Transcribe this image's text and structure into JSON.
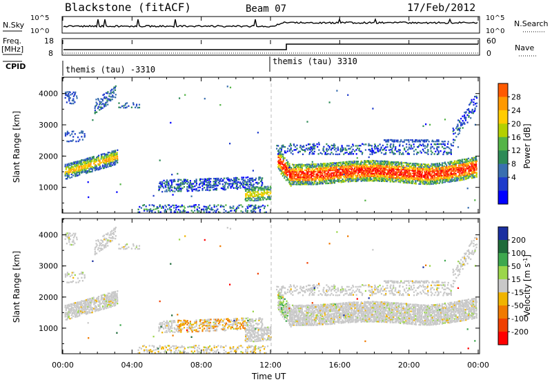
{
  "header": {
    "title": "Blackstone (fitACF)",
    "beam": "Beam 07",
    "date": "17/Feb/2012"
  },
  "aux": {
    "nsky_label": "N.Sky",
    "nsky_ticks": [
      "10^5",
      "10^0"
    ],
    "nsearch_label": "N.Search",
    "freq_label": "Freq.",
    "freq_unit": "[MHz]",
    "freq_ticks": [
      "18",
      "8"
    ],
    "nave_label": "Nave",
    "nave_ticks": [
      "60",
      "0"
    ],
    "cpid_label": "CPID",
    "cpid_left": "themis (tau) -3310",
    "cpid_right": "themis (tau) 3310"
  },
  "chart_data": [
    {
      "type": "heatmap",
      "name": "power",
      "ylabel": "Slant Range [km]",
      "colorbar_label": "Power [dB]",
      "colorbar_ticks": [
        "28",
        "24",
        "20",
        "16",
        "12",
        "8",
        "4"
      ],
      "colorbar_colors": [
        "#ff0000",
        "#ff5a00",
        "#ff9900",
        "#ffcc00",
        "#b4d000",
        "#55b447",
        "#2e8b57",
        "#3a6fb0",
        "#1f3ccc",
        "#0000ff"
      ],
      "ylim": [
        200,
        4500
      ],
      "yticks": [
        "4000",
        "3000",
        "2000",
        "1000"
      ],
      "xlim": [
        "00:00",
        "24:00"
      ],
      "notes": "Echo bands: 00:00-03:00 band rising ~1500 to 2000 km; 06:00-12:00 weak low-power band ~800-1300 km; 12:30-24:00 strong band ~1200-1800 km (red, ~25-30 dB) with weaker 2000-2400 km band"
    },
    {
      "type": "heatmap",
      "name": "velocity",
      "ylabel": "Slant Range [km]",
      "colorbar_label": "Velocity [m s^-1]",
      "colorbar_ticks": [
        "200",
        "100",
        "50",
        "15",
        "-15",
        "-50",
        "-100",
        "-200"
      ],
      "colorbar_colors": [
        "#1a2fa0",
        "#1f6b3a",
        "#3ea84e",
        "#9bd64b",
        "#c8c8c8",
        "#f0b400",
        "#f07a00",
        "#f04000",
        "#ff0000"
      ],
      "ylim": [
        200,
        4500
      ],
      "yticks": [
        "4000",
        "3000",
        "2000",
        "1000"
      ],
      "xlabel": "Time UT",
      "xticks": [
        "00:00",
        "04:00",
        "08:00",
        "12:00",
        "16:00",
        "20:00",
        "00:00"
      ],
      "notes": "Mostly ground scatter (grey, -15 to 15 m/s); orange (-50 to -100) patches near 08:00-10:00 at ~1000 km"
    }
  ]
}
